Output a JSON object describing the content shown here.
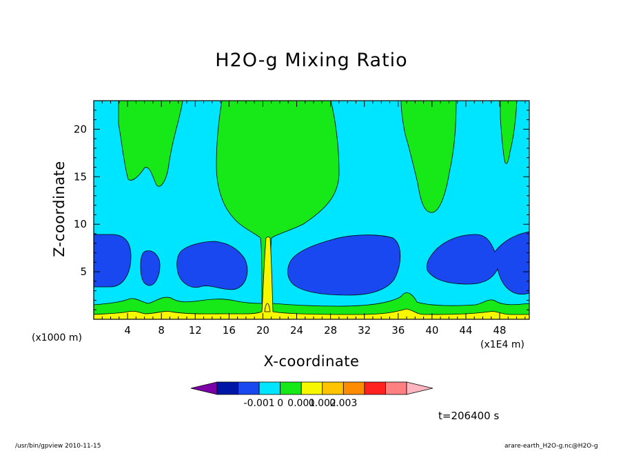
{
  "chart_data": {
    "type": "contour",
    "title": "H2O-g Mixing Ratio",
    "xlabel": "X-coordinate",
    "ylabel": "Z-coordinate",
    "x_unit_left": "(x1000 m)",
    "x_unit_right": "(x1E4 m)",
    "xlim": [
      0,
      51.5
    ],
    "ylim": [
      0,
      23
    ],
    "x_ticks": [
      {
        "value": 4,
        "label": "4"
      },
      {
        "value": 8,
        "label": "8"
      },
      {
        "value": 12,
        "label": "12"
      },
      {
        "value": 16,
        "label": "16"
      },
      {
        "value": 20,
        "label": "20"
      },
      {
        "value": 24,
        "label": "24"
      },
      {
        "value": 28,
        "label": "28"
      },
      {
        "value": 32,
        "label": "32"
      },
      {
        "value": 36,
        "label": "36"
      },
      {
        "value": 40,
        "label": "40"
      },
      {
        "value": 44,
        "label": "44"
      },
      {
        "value": 48,
        "label": "48"
      }
    ],
    "y_ticks": [
      {
        "value": 5,
        "label": "5"
      },
      {
        "value": 10,
        "label": "10"
      },
      {
        "value": 15,
        "label": "15"
      },
      {
        "value": 20,
        "label": "20"
      }
    ],
    "colorbar": {
      "colors": [
        "#7b00a8",
        "#0016a4",
        "#1a48f0",
        "#00e5ff",
        "#17e817",
        "#f7f700",
        "#ffc400",
        "#ff8c00",
        "#ff2020",
        "#ff8080",
        "#ffb5c0"
      ],
      "labels": [
        "-0.001",
        "0",
        "0.001",
        "0.002",
        "0.003"
      ]
    },
    "time_label": "t=206400 s"
  },
  "colors": {
    "background": "#00e5ff",
    "green": "#17e817",
    "blue": "#1a48f0",
    "yellow": "#f7f700"
  },
  "footer": {
    "left": "/usr/bin/gpview   2010-11-15",
    "right": "arare-earth_H2O-g.nc@H2O-g"
  }
}
